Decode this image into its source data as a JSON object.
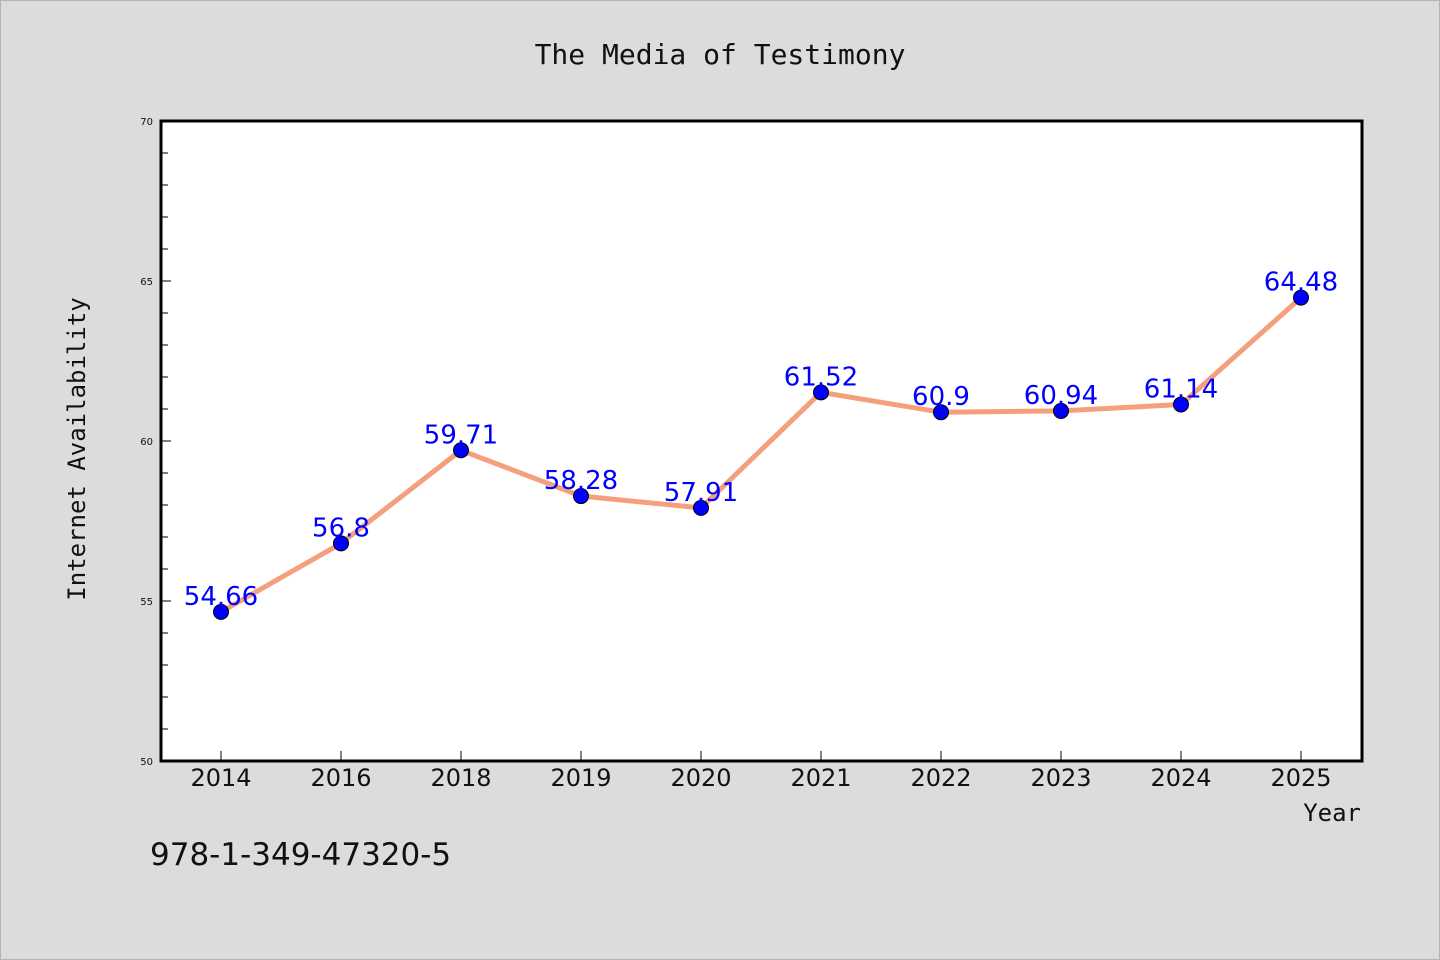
{
  "chart_data": {
    "type": "line",
    "title": "The Media of Testimony",
    "xlabel": "Year",
    "ylabel": "Internet Availability",
    "categories": [
      "2014",
      "2016",
      "2018",
      "2019",
      "2020",
      "2021",
      "2022",
      "2023",
      "2024",
      "2025"
    ],
    "series": [
      {
        "values": [
          54.66,
          56.8,
          59.71,
          58.28,
          57.91,
          61.52,
          60.9,
          60.94,
          61.14,
          64.48
        ],
        "data_labels": [
          "54.66",
          "56.8",
          "59.71",
          "58.28",
          "57.91",
          "61.52",
          "60.9",
          "60.94",
          "61.14",
          "64.48"
        ],
        "line_color": "#f4a07e",
        "marker_color": "#0000ff"
      }
    ],
    "y_ticks": [
      "50",
      "55",
      "60",
      "65",
      "70"
    ],
    "ylim": [
      50,
      70
    ],
    "grid": false,
    "legend": "none"
  },
  "footer": {
    "isbn": "978-1-349-47320-5"
  },
  "colors": {
    "background": "#dcdcdc",
    "plot_background": "#ffffff",
    "axis": "#000000"
  }
}
